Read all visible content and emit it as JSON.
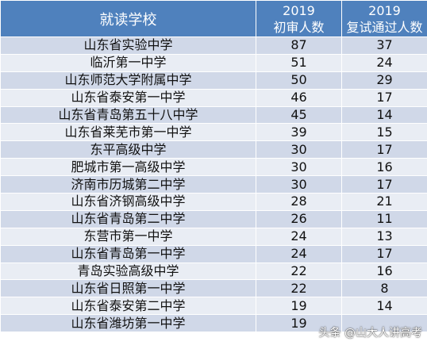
{
  "header": {
    "school": "就读学校",
    "initial_year": "2019",
    "initial_label": "初审人数",
    "pass_year": "2019",
    "pass_label": "复试通过人数"
  },
  "rows": [
    {
      "school": "山东省实验中学",
      "initial": "87",
      "pass": "37"
    },
    {
      "school": "临沂第一中学",
      "initial": "51",
      "pass": "24"
    },
    {
      "school": "山东师范大学附属中学",
      "initial": "50",
      "pass": "29"
    },
    {
      "school": "山东省泰安第一中学",
      "initial": "46",
      "pass": "17"
    },
    {
      "school": "山东省青岛第五十八中学",
      "initial": "45",
      "pass": "14"
    },
    {
      "school": "山东省莱芜市第一中学",
      "initial": "39",
      "pass": "15"
    },
    {
      "school": "东平高级中学",
      "initial": "30",
      "pass": "17"
    },
    {
      "school": "肥城市第一高级中学",
      "initial": "30",
      "pass": "16"
    },
    {
      "school": "济南市历城第二中学",
      "initial": "30",
      "pass": "17"
    },
    {
      "school": "山东省济钢高级中学",
      "initial": "28",
      "pass": "21"
    },
    {
      "school": "山东省青岛第二中学",
      "initial": "26",
      "pass": "11"
    },
    {
      "school": "东营市第一中学",
      "initial": "24",
      "pass": "13"
    },
    {
      "school": "山东省青岛第一中学",
      "initial": "24",
      "pass": "17"
    },
    {
      "school": "青岛实验高级中学",
      "initial": "22",
      "pass": "16"
    },
    {
      "school": "山东省日照第一中学",
      "initial": "22",
      "pass": "8"
    },
    {
      "school": "山东省泰安第二中学",
      "initial": "19",
      "pass": "14"
    },
    {
      "school": "山东省潍坊第一中学",
      "initial": "19",
      "pass": ""
    }
  ],
  "watermark": "头条 @山大人讲高考"
}
